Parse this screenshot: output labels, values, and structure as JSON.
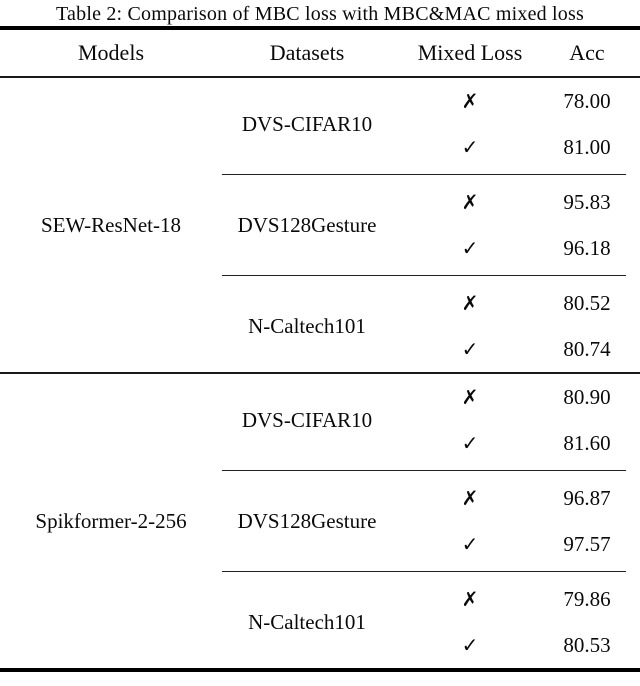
{
  "title": "Table 2: Comparison of MBC loss with MBC&MAC mixed loss",
  "columns": {
    "models": "Models",
    "datasets": "Datasets",
    "mixed_loss": "Mixed Loss",
    "acc": "Acc"
  },
  "marks": {
    "cross": "✗",
    "check": "✓"
  },
  "colors": {
    "text": "#0a0a0a",
    "rule": "#000000",
    "background": "#ffffff"
  },
  "groups": [
    {
      "model": "SEW-ResNet-18",
      "subgroups": [
        {
          "dataset": "DVS-CIFAR10",
          "rows": [
            {
              "mark": "✗",
              "acc": "78.00"
            },
            {
              "mark": "✓",
              "acc": "81.00"
            }
          ]
        },
        {
          "dataset": "DVS128Gesture",
          "rows": [
            {
              "mark": "✗",
              "acc": "95.83"
            },
            {
              "mark": "✓",
              "acc": "96.18"
            }
          ]
        },
        {
          "dataset": "N-Caltech101",
          "rows": [
            {
              "mark": "✗",
              "acc": "80.52"
            },
            {
              "mark": "✓",
              "acc": "80.74"
            }
          ]
        }
      ]
    },
    {
      "model": "Spikformer-2-256",
      "subgroups": [
        {
          "dataset": "DVS-CIFAR10",
          "rows": [
            {
              "mark": "✗",
              "acc": "80.90"
            },
            {
              "mark": "✓",
              "acc": "81.60"
            }
          ]
        },
        {
          "dataset": "DVS128Gesture",
          "rows": [
            {
              "mark": "✗",
              "acc": "96.87"
            },
            {
              "mark": "✓",
              "acc": "97.57"
            }
          ]
        },
        {
          "dataset": "N-Caltech101",
          "rows": [
            {
              "mark": "✗",
              "acc": "79.86"
            },
            {
              "mark": "✓",
              "acc": "80.53"
            }
          ]
        }
      ]
    }
  ]
}
